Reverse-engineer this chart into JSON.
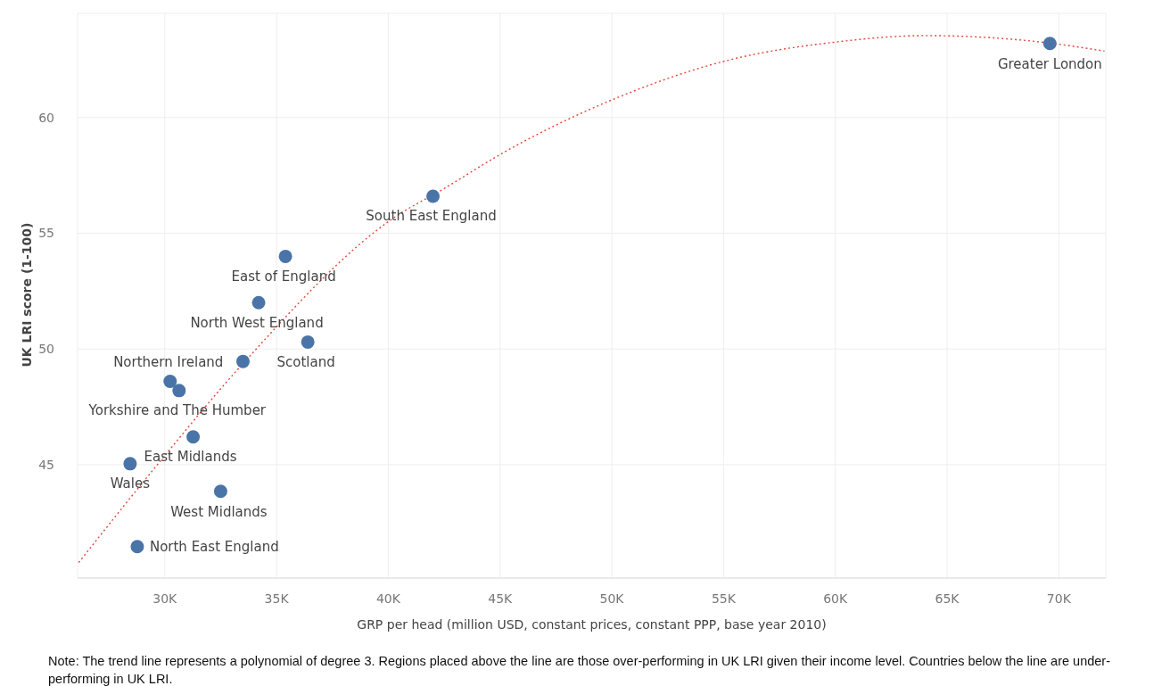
{
  "chart_data": {
    "type": "scatter",
    "xlabel": "GRP per head (million USD, constant prices, constant PPP, base year 2010)",
    "ylabel": "UK LRI score (1-100)",
    "xlim": [
      26.1,
      72.1
    ],
    "ylim": [
      40.1,
      64.5
    ],
    "xticks": [
      {
        "value": 30,
        "label": "30K"
      },
      {
        "value": 35,
        "label": "35K"
      },
      {
        "value": 40,
        "label": "40K"
      },
      {
        "value": 45,
        "label": "45K"
      },
      {
        "value": 50,
        "label": "50K"
      },
      {
        "value": 55,
        "label": "55K"
      },
      {
        "value": 60,
        "label": "60K"
      },
      {
        "value": 65,
        "label": "65K"
      },
      {
        "value": 70,
        "label": "70K"
      }
    ],
    "yticks": [
      45,
      50,
      55,
      60
    ],
    "grid": true,
    "series": [
      {
        "type": "line",
        "color": "#e0463c",
        "line_style": "dotted",
        "x": [
          26.15,
          29.44,
          33.53,
          40.3,
          42.55,
          45.0,
          50.1,
          55.06,
          60.1,
          64.0,
          69.65,
          72.04
        ],
        "values": [
          40.77,
          44.73,
          49.4,
          55.7,
          56.96,
          58.4,
          60.8,
          62.44,
          63.27,
          63.54,
          63.21,
          62.87
        ]
      },
      {
        "color": "#4a74a8",
        "marker": "circle",
        "x": [
          69.6,
          42.0,
          35.4,
          34.2,
          36.4,
          33.5,
          30.24,
          30.64,
          31.27,
          28.45,
          32.5,
          28.77
        ],
        "values": [
          63.2,
          56.6,
          54.0,
          52.0,
          50.3,
          49.46,
          48.6,
          48.2,
          46.2,
          45.04,
          43.85,
          41.46
        ]
      }
    ],
    "annotations": [
      {
        "text": "Greater London",
        "x": 69.6,
        "y": 63.2
      },
      {
        "text": "South East England",
        "x": 42.0,
        "y": 56.6
      },
      {
        "text": "East of England",
        "x": 35.4,
        "y": 54.0
      },
      {
        "text": "North West England",
        "x": 34.2,
        "y": 52.0
      },
      {
        "text": "Scotland",
        "x": 36.4,
        "y": 50.3
      },
      {
        "text": "Northern Ireland",
        "x": 30.24,
        "y": 48.6
      },
      {
        "text": "Yorkshire and The Humber",
        "x": 30.64,
        "y": 48.2
      },
      {
        "text": "East Midlands",
        "x": 31.27,
        "y": 46.2
      },
      {
        "text": "Wales",
        "x": 28.45,
        "y": 45.04
      },
      {
        "text": "West Midlands",
        "x": 32.5,
        "y": 43.85
      },
      {
        "text": "North East England",
        "x": 28.77,
        "y": 41.46
      },
      "Note: The trend line represents a polynomial of degree 3. Regions placed above the line are those over-performing in UK LRI given their income level. Countries below the line are under-performing in UK LRI."
    ]
  }
}
